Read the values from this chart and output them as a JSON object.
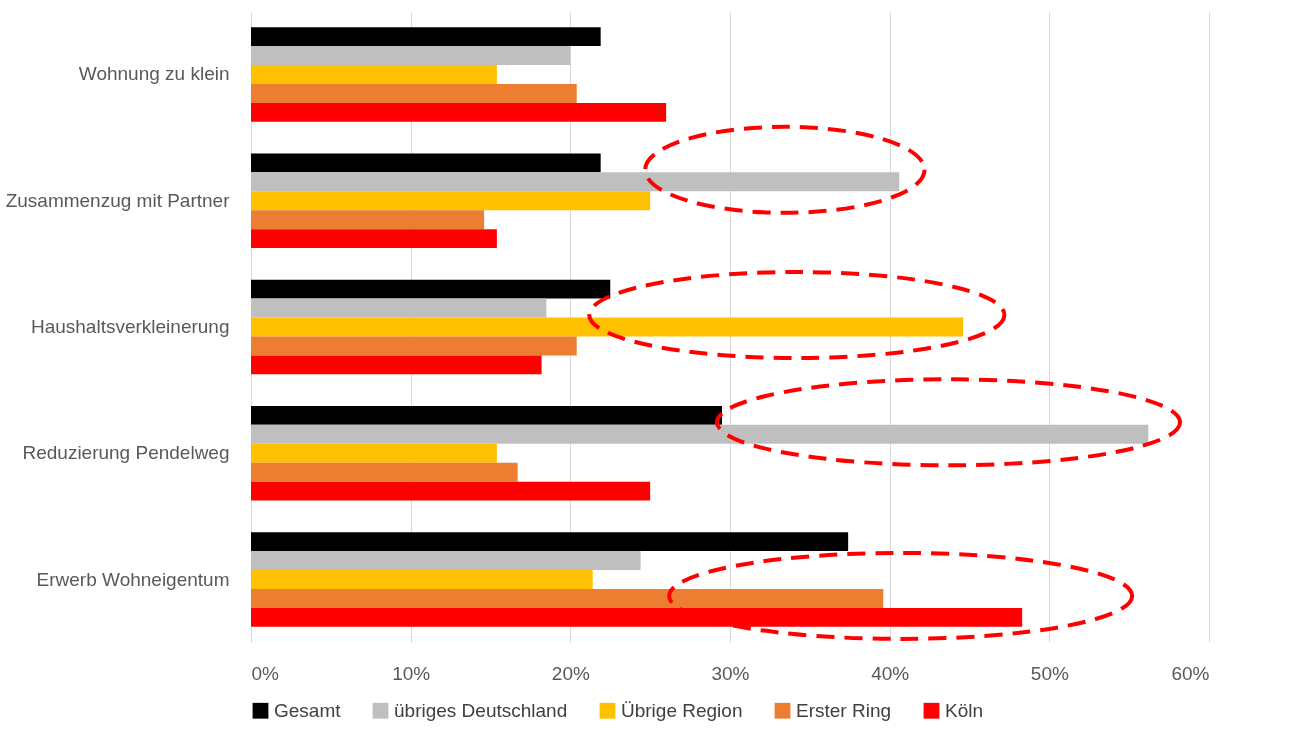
{
  "chart_data": {
    "type": "bar",
    "orientation": "horizontal",
    "categories": [
      "Wohnung zu klein",
      "Zusammenzug mit Partner",
      "Haushaltsverkleinerung",
      "Reduzierung Pendelweg",
      "Erwerb Wohneigentum"
    ],
    "series": [
      {
        "name": "Gesamt",
        "color": "#000000",
        "values": [
          21.9,
          21.9,
          22.5,
          29.5,
          37.4
        ]
      },
      {
        "name": "übriges Deutschland",
        "color": "#bfbfbf",
        "values": [
          20.0,
          40.6,
          18.5,
          56.2,
          24.4
        ]
      },
      {
        "name": "Übrige Region",
        "color": "#ffc000",
        "values": [
          15.4,
          25.0,
          44.6,
          15.4,
          21.4
        ]
      },
      {
        "name": "Erster Ring",
        "color": "#ed7d31",
        "values": [
          20.4,
          14.6,
          20.4,
          16.7,
          39.6
        ]
      },
      {
        "name": "Köln",
        "color": "#ff0000",
        "values": [
          26.0,
          15.4,
          18.2,
          25.0,
          48.3
        ]
      }
    ],
    "xlim": [
      0,
      60
    ],
    "xticks": [
      {
        "value": 0,
        "label": "0%"
      },
      {
        "value": 10,
        "label": "10%"
      },
      {
        "value": 20,
        "label": "20%"
      },
      {
        "value": 30,
        "label": "30%"
      },
      {
        "value": 40,
        "label": "40%"
      },
      {
        "value": 50,
        "label": "50%"
      },
      {
        "value": 60,
        "label": "60%"
      }
    ],
    "grid": "x",
    "legend": "bottom"
  }
}
